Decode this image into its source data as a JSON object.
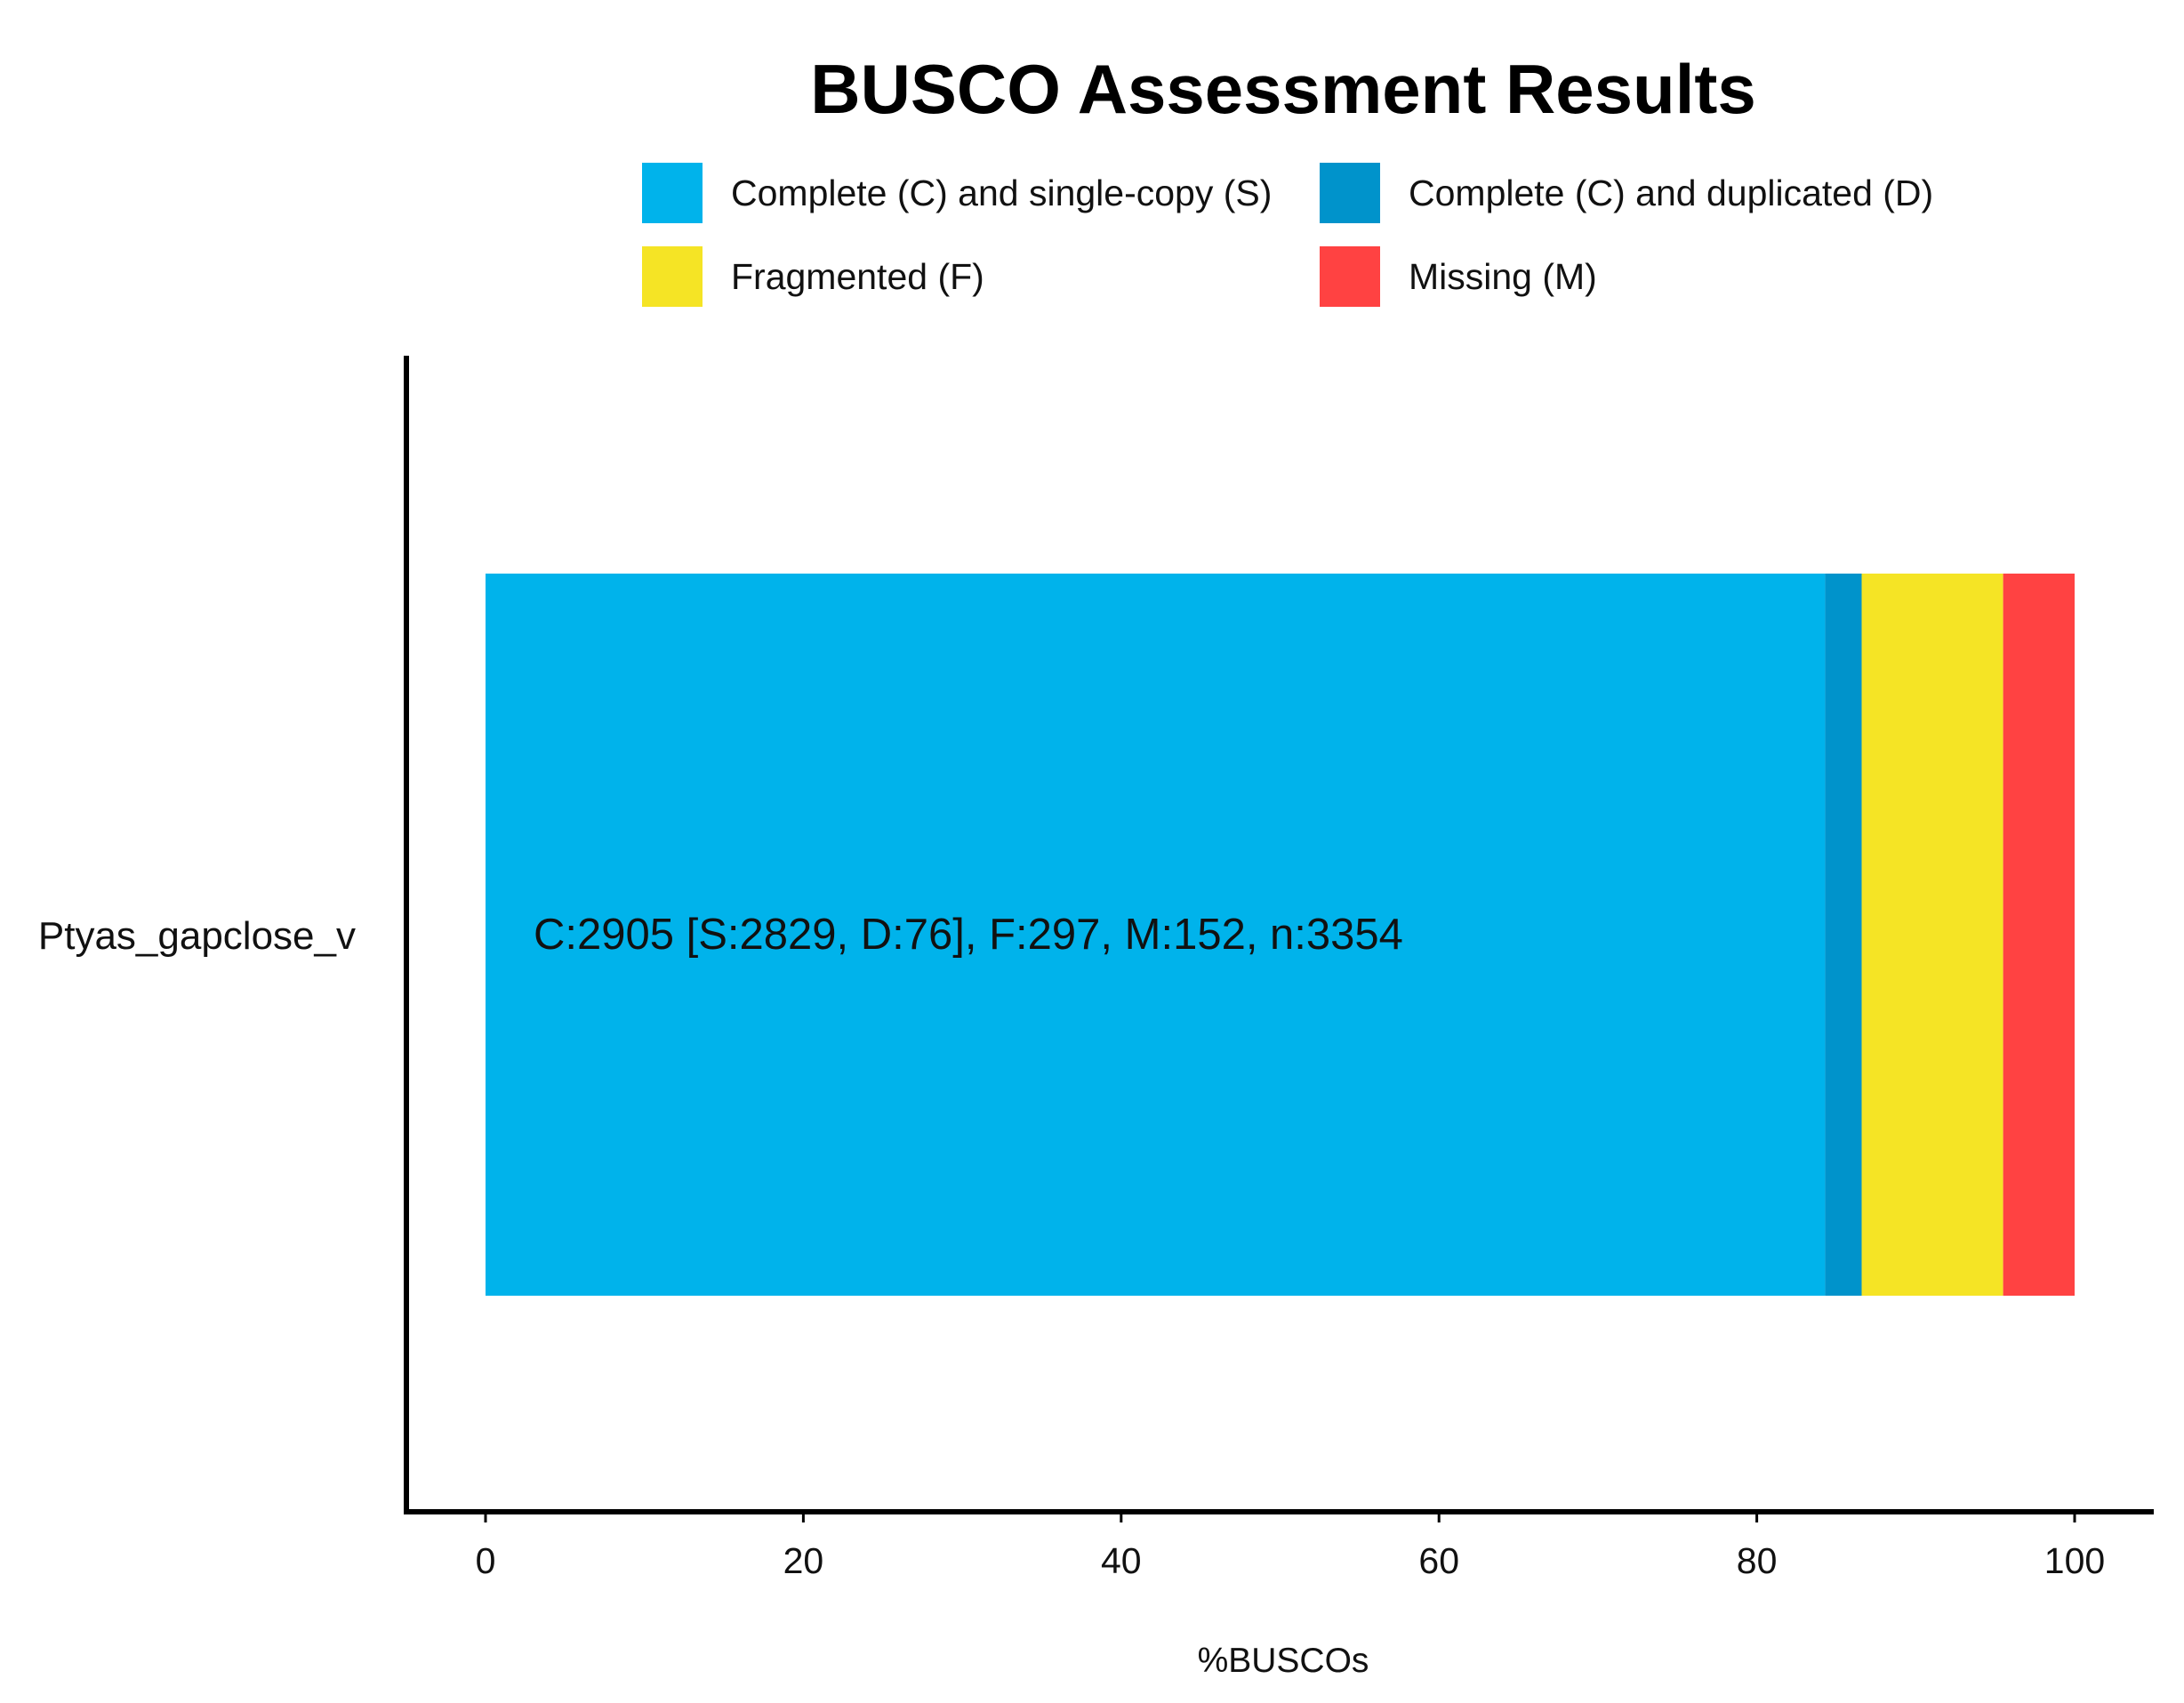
{
  "chart_data": {
    "type": "bar",
    "orientation": "horizontal",
    "stacked": true,
    "title": "BUSCO Assessment Results",
    "xlabel": "%BUSCOs",
    "ylabel": "",
    "xlim": [
      0,
      100
    ],
    "x_ticks": [
      "0",
      "20",
      "40",
      "60",
      "80",
      "100"
    ],
    "categories": [
      "Ptyas_gapclose_v"
    ],
    "series": [
      {
        "name": "Complete (C) and single-copy (S)",
        "color": "#00B3EB",
        "values": [
          84.3
        ]
      },
      {
        "name": "Complete (C) and duplicated (D)",
        "color": "#0093CB",
        "values": [
          2.3
        ]
      },
      {
        "name": "Fragmented (F)",
        "color": "#F5E425",
        "values": [
          8.9
        ]
      },
      {
        "name": "Missing (M)",
        "color": "#FF4242",
        "values": [
          4.5
        ]
      }
    ],
    "bar_annotation": "C:2905 [S:2829, D:76], F:297, M:152, n:3354",
    "legend_position": "top",
    "grid": false
  }
}
